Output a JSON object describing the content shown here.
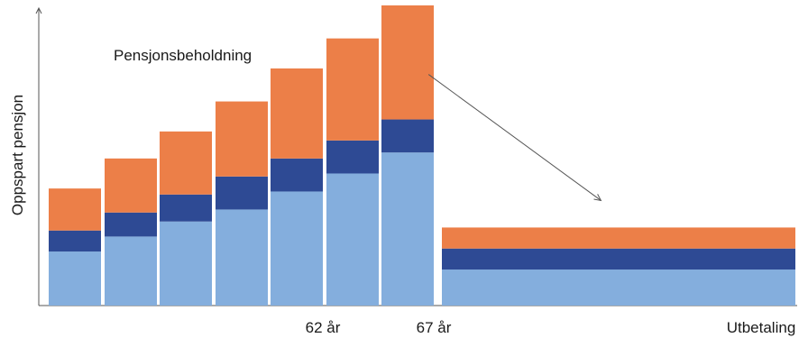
{
  "chart_data": {
    "type": "bar",
    "stacked": true,
    "title": "",
    "xlabel": "",
    "ylabel": "Oppspart pensjon",
    "annotation": "Pensjonsbeholdning",
    "ylim": [
      0,
      100
    ],
    "grid": false,
    "legend": "none",
    "categories": [
      "",
      "",
      "",
      "",
      "",
      "",
      "",
      "Utbetaling"
    ],
    "x_tick_labels": [
      {
        "after_bar": 4,
        "text": "62 år"
      },
      {
        "after_bar": 6,
        "text": "67 år"
      },
      {
        "after_bar": 7,
        "text": "Utbetaling"
      }
    ],
    "series": [
      {
        "values": [
          18,
          23,
          28,
          32,
          38,
          44,
          51,
          12
        ],
        "color": "#84AEDD"
      },
      {
        "values": [
          7,
          8,
          9,
          11,
          11,
          11,
          11,
          7
        ],
        "color": "#2E4A94"
      },
      {
        "values": [
          14,
          18,
          21,
          25,
          30,
          34,
          38,
          7
        ],
        "color": "#EC7F48"
      }
    ],
    "arrow": {
      "from": [
        6.9,
        77
      ],
      "to": [
        7.45,
        35
      ]
    }
  }
}
